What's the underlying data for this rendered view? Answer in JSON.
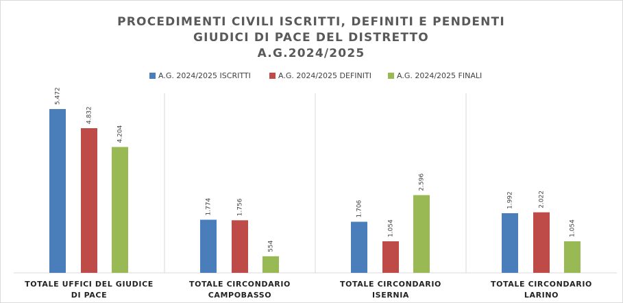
{
  "chart_data": {
    "type": "bar",
    "title": [
      "PROCEDIMENTI CIVILI ISCRITTI, DEFINITI E PENDENTI",
      "GIUDICI DI PACE DEL DISTRETTO",
      "A.G.2024/2025"
    ],
    "categories": [
      "TOTALE UFFICI DEL GIUDICE DI PACE",
      "TOTALE CIRCONDARIO CAMPOBASSO",
      "TOTALE CIRCONDARIO ISERNIA",
      "TOTALE CIRCONDARIO LARINO"
    ],
    "series": [
      {
        "name": "A.G. 2024/2025 ISCRITTI",
        "color": "#4a7ebb",
        "values": [
          5472,
          1774,
          1706,
          1992
        ],
        "value_labels": [
          "5.472",
          "1.774",
          "1.706",
          "1.992"
        ]
      },
      {
        "name": "A.G. 2024/2025 DEFINITI",
        "color": "#be4b48",
        "values": [
          4832,
          1756,
          1054,
          2022
        ],
        "value_labels": [
          "4.832",
          "1.756",
          "1.054",
          "2.022"
        ]
      },
      {
        "name": "A.G. 2024/2025 FINALI",
        "color": "#98b954",
        "values": [
          4204,
          554,
          2596,
          1054
        ],
        "value_labels": [
          "4.204",
          "554",
          "2.596",
          "1.054"
        ]
      }
    ],
    "ylim": [
      0,
      6000
    ],
    "legend": "top"
  }
}
